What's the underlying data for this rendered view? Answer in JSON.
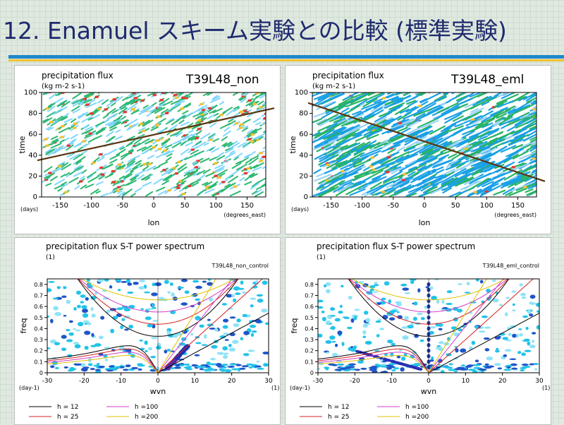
{
  "slide": {
    "title": "12. Enamuel スキーム実験との比較 (標準実験)"
  },
  "panels": [
    {
      "id": "tl",
      "title": "precipitation flux",
      "units": "(kg m-2 s-1)",
      "run_label": "T39L48_non",
      "xlabel": "lon",
      "ylabel": "time",
      "x_unit": "(degrees_east)",
      "y_unit": "(days)"
    },
    {
      "id": "tr",
      "title": "precipitation flux",
      "units": "(kg m-2 s-1)",
      "run_label": "T39L48_eml",
      "xlabel": "lon",
      "ylabel": "time",
      "x_unit": "(degrees_east)",
      "y_unit": "(days)"
    },
    {
      "id": "bl",
      "title": "precipitation flux S-T power spectrum",
      "units": "(1)",
      "run_label": "T39L48_non_control",
      "xlabel": "wvn",
      "ylabel": "freq",
      "x_unit": "(1)",
      "y_unit": "(day-1)",
      "legend": [
        "h = 12",
        "h = 25",
        "h =100",
        "h =200"
      ]
    },
    {
      "id": "br",
      "title": "precipitation flux S-T power spectrum",
      "units": "(1)",
      "run_label": "T39L48_eml_control",
      "xlabel": "wvn",
      "ylabel": "freq",
      "x_unit": "(1)",
      "y_unit": "(day-1)",
      "legend": [
        "h = 12",
        "h = 25",
        "h =100",
        "h =200"
      ]
    }
  ],
  "chart_data": [
    {
      "type": "heatmap",
      "title": "precipitation flux",
      "units": "(kg m-2 s-1)",
      "xlabel": "lon",
      "ylabel": "time",
      "xlim": [
        -180,
        180
      ],
      "ylim": [
        0,
        100
      ],
      "x_ticks": [
        -150,
        -100,
        -50,
        0,
        50,
        100,
        150
      ],
      "y_ticks": [
        0,
        20,
        40,
        60,
        80,
        100
      ],
      "annotation_line": {
        "x": [
          -180,
          180
        ],
        "y": [
          35,
          85
        ]
      }
    },
    {
      "type": "heatmap",
      "title": "precipitation flux",
      "units": "(kg m-2 s-1)",
      "xlabel": "lon",
      "ylabel": "time",
      "xlim": [
        -180,
        180
      ],
      "ylim": [
        0,
        100
      ],
      "x_ticks": [
        -150,
        -100,
        -50,
        0,
        50,
        100,
        150
      ],
      "y_ticks": [
        0,
        20,
        40,
        60,
        80,
        100
      ],
      "annotation_line": {
        "x": [
          -180,
          180
        ],
        "y": [
          90,
          15
        ]
      }
    },
    {
      "type": "heatmap",
      "title": "precipitation flux S-T power spectrum",
      "xlabel": "wvn",
      "ylabel": "freq",
      "xlim": [
        -30,
        30
      ],
      "ylim": [
        0,
        0.85
      ],
      "x_ticks": [
        -30,
        -20,
        -10,
        0,
        10,
        20,
        30
      ],
      "y_ticks": [
        0,
        0.1,
        0.2,
        0.3,
        0.4,
        0.5,
        0.6,
        0.7,
        0.8
      ],
      "legend": [
        "h = 12",
        "h = 25",
        "h =100",
        "h =200"
      ]
    },
    {
      "type": "heatmap",
      "title": "precipitation flux S-T power spectrum",
      "xlabel": "wvn",
      "ylabel": "freq",
      "xlim": [
        -30,
        30
      ],
      "ylim": [
        0,
        0.85
      ],
      "x_ticks": [
        -30,
        -20,
        -10,
        0,
        10,
        20,
        30
      ],
      "y_ticks": [
        0,
        0.1,
        0.2,
        0.3,
        0.4,
        0.5,
        0.6,
        0.7,
        0.8
      ],
      "legend": [
        "h = 12",
        "h = 25",
        "h =100",
        "h =200"
      ]
    }
  ],
  "colors": {
    "title": "#1f2a6e",
    "rule_blue": "#1e88c8",
    "rule_yellow": "#f1c232",
    "trend_line": "#5a3510"
  }
}
